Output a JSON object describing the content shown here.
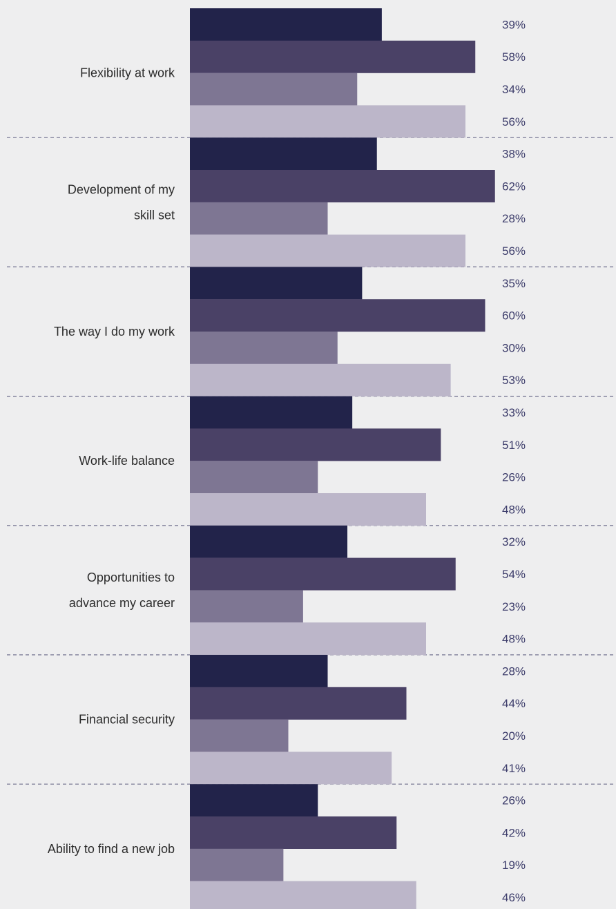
{
  "chart_data": {
    "type": "bar",
    "orientation": "horizontal",
    "grouped": true,
    "value_format": "percent",
    "title": "",
    "xlabel": "",
    "ylabel": "",
    "xlim": [
      0,
      100
    ],
    "grid": false,
    "legend": "none",
    "categories": [
      [
        "Flexibility at work"
      ],
      [
        "Development of my",
        "skill set"
      ],
      [
        "The way I do my work"
      ],
      [
        "Work-life balance"
      ],
      [
        "Opportunities to",
        "advance my career"
      ],
      [
        "Financial security"
      ],
      [
        "Ability to find a new job"
      ]
    ],
    "series": [
      {
        "color": "#22234a",
        "values": [
          39,
          38,
          35,
          33,
          32,
          28,
          26
        ]
      },
      {
        "color": "#4a4166",
        "values": [
          58,
          62,
          60,
          51,
          54,
          44,
          42
        ]
      },
      {
        "color": "#7e7693",
        "values": [
          34,
          28,
          30,
          26,
          23,
          20,
          19
        ]
      },
      {
        "color": "#bcb6c9",
        "values": [
          56,
          56,
          53,
          48,
          48,
          41,
          46
        ]
      }
    ],
    "value_suffix": "%"
  },
  "colors": {
    "background": "#eeeeef",
    "category_text": "#2b2b2b",
    "value_text": "#3d3d6b",
    "separator": "#6b6b8a"
  }
}
